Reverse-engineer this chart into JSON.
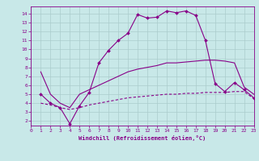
{
  "bg_color": "#c8e8e8",
  "grid_color": "#aacccc",
  "line_color": "#880088",
  "xlabel": "Windchill (Refroidissement éolien,°C)",
  "xlim": [
    0,
    23
  ],
  "ylim": [
    1.5,
    14.8
  ],
  "xticks": [
    0,
    1,
    2,
    3,
    4,
    5,
    6,
    7,
    8,
    9,
    10,
    11,
    12,
    13,
    14,
    15,
    16,
    17,
    18,
    19,
    20,
    21,
    22,
    23
  ],
  "yticks": [
    2,
    3,
    4,
    5,
    6,
    7,
    8,
    9,
    10,
    11,
    12,
    13,
    14
  ],
  "line1_x": [
    1,
    2,
    3,
    4,
    5,
    6,
    7,
    8,
    9,
    10,
    11,
    12,
    13,
    14,
    15,
    16,
    17,
    18,
    19,
    20,
    21,
    22,
    23
  ],
  "line1_y": [
    5.0,
    4.0,
    3.5,
    1.7,
    3.7,
    5.2,
    8.5,
    9.9,
    11.0,
    11.8,
    13.9,
    13.5,
    13.6,
    14.3,
    14.1,
    14.3,
    13.8,
    11.0,
    6.2,
    5.3,
    6.3,
    5.5,
    4.6
  ],
  "line2_x": [
    1,
    2,
    3,
    4,
    5,
    6,
    7,
    8,
    9,
    10,
    11,
    12,
    13,
    14,
    15,
    16,
    17,
    18,
    19,
    20,
    21,
    22,
    23
  ],
  "line2_y": [
    7.5,
    5.0,
    4.0,
    3.5,
    5.0,
    5.5,
    6.0,
    6.5,
    7.0,
    7.5,
    7.8,
    8.0,
    8.2,
    8.5,
    8.5,
    8.6,
    8.7,
    8.8,
    8.8,
    8.7,
    8.5,
    5.8,
    5.0
  ],
  "line3_x": [
    1,
    2,
    3,
    4,
    5,
    6,
    7,
    8,
    9,
    10,
    11,
    12,
    13,
    14,
    15,
    16,
    17,
    18,
    19,
    20,
    21,
    22,
    23
  ],
  "line3_y": [
    4.0,
    3.8,
    3.5,
    3.3,
    3.5,
    3.8,
    4.0,
    4.2,
    4.4,
    4.6,
    4.7,
    4.8,
    4.9,
    5.0,
    5.0,
    5.1,
    5.1,
    5.2,
    5.2,
    5.2,
    5.3,
    5.3,
    4.5
  ]
}
